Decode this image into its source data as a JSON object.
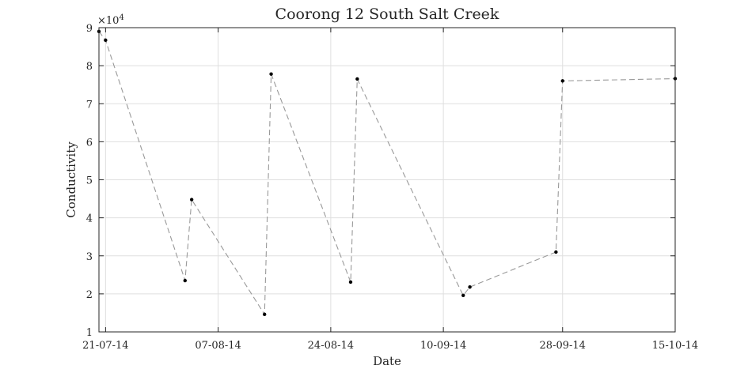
{
  "chart_data": {
    "type": "line",
    "title": "Coorong 12 South Salt Creek",
    "xlabel": "Date",
    "ylabel": "Conductivity",
    "y_exponent_label": "×10",
    "y_exponent_power": "4",
    "y_multiplier": 10000,
    "xlim": [
      "2014-07-20",
      "2014-10-15"
    ],
    "ylim": [
      10000,
      90000
    ],
    "x_ticks": [
      "2014-07-21",
      "2014-08-07",
      "2014-08-24",
      "2014-09-10",
      "2014-09-28",
      "2014-10-15"
    ],
    "x_tick_labels": [
      "21-07-14",
      "07-08-14",
      "24-08-14",
      "10-09-14",
      "28-09-14",
      "15-10-14"
    ],
    "y_ticks": [
      10000,
      20000,
      30000,
      40000,
      50000,
      60000,
      70000,
      80000,
      90000
    ],
    "y_tick_labels": [
      "1",
      "2",
      "3",
      "4",
      "5",
      "6",
      "7",
      "8",
      "9"
    ],
    "grid": true,
    "line_style": "dashed",
    "line_color": "#999999",
    "marker_color": "#000000",
    "series": [
      {
        "x": [
          "2014-07-20",
          "2014-07-21",
          "2014-08-02",
          "2014-08-03",
          "2014-08-14",
          "2014-08-15",
          "2014-08-27",
          "2014-08-28",
          "2014-09-13",
          "2014-09-14",
          "2014-09-27",
          "2014-09-28",
          "2014-10-15"
        ],
        "y": [
          89000,
          86700,
          23500,
          44800,
          14600,
          77800,
          23100,
          76500,
          19600,
          21800,
          31000,
          76000,
          76600
        ]
      }
    ]
  }
}
